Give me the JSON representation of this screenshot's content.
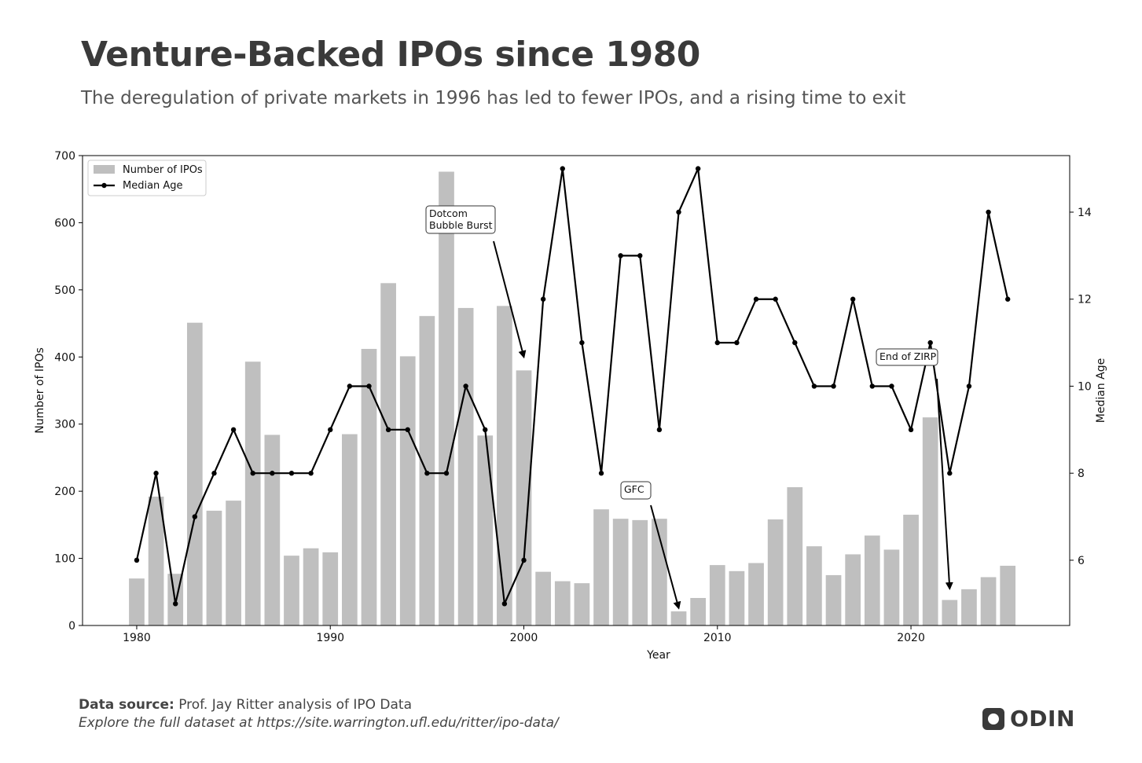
{
  "header": {
    "title": "Venture-Backed IPOs since 1980",
    "subtitle": "The deregulation of private markets in 1996 has led to fewer IPOs, and a rising time to exit"
  },
  "footer": {
    "source_label": "Data source:",
    "source_text": "Prof. Jay Ritter analysis of IPO Data",
    "explore_text": "Explore the full dataset at https://site.warrington.ufl.edu/ritter/ipo-data/",
    "logo_text": "ODIN"
  },
  "colors": {
    "bar": "#bfbfbf",
    "line": "#000000",
    "text": "#333333"
  },
  "chart_data": {
    "type": "bar",
    "title": "Venture-Backed IPOs since 1980",
    "xlabel": "Year",
    "ylabel": "Number of IPOs",
    "y2label": "Median Age",
    "xlim": [
      1977.2,
      2028.2
    ],
    "ylim": [
      0,
      700
    ],
    "y2lim": [
      4.5,
      15.3
    ],
    "x_ticks": [
      1980,
      1990,
      2000,
      2010,
      2020
    ],
    "y_ticks": [
      0,
      100,
      200,
      300,
      400,
      500,
      600,
      700
    ],
    "y2_ticks": [
      6,
      8,
      10,
      12,
      14
    ],
    "legend_position": "top-left",
    "years": [
      1980,
      1981,
      1982,
      1983,
      1984,
      1985,
      1986,
      1987,
      1988,
      1989,
      1990,
      1991,
      1992,
      1993,
      1994,
      1995,
      1996,
      1997,
      1998,
      1999,
      2000,
      2001,
      2002,
      2003,
      2004,
      2005,
      2006,
      2007,
      2008,
      2009,
      2010,
      2011,
      2012,
      2013,
      2014,
      2015,
      2016,
      2017,
      2018,
      2019,
      2020,
      2021,
      2022,
      2023,
      2024,
      2025
    ],
    "series": [
      {
        "name": "Number of IPOs",
        "type": "bar",
        "axis": "left",
        "values": [
          70,
          192,
          77,
          451,
          171,
          186,
          393,
          284,
          104,
          115,
          109,
          285,
          412,
          510,
          401,
          461,
          676,
          473,
          283,
          476,
          380,
          80,
          66,
          63,
          173,
          159,
          157,
          159,
          21,
          41,
          90,
          81,
          93,
          158,
          206,
          118,
          75,
          106,
          134,
          113,
          165,
          310,
          38,
          54,
          72,
          89
        ]
      },
      {
        "name": "Median Age",
        "type": "line",
        "axis": "right",
        "values": [
          6,
          8,
          5,
          7,
          8,
          9,
          8,
          8,
          8,
          8,
          9,
          10,
          10,
          9,
          9,
          8,
          8,
          10,
          9,
          5,
          6,
          12,
          15,
          11,
          8,
          13,
          13,
          9,
          14,
          15,
          11,
          11,
          12,
          12,
          11,
          10,
          10,
          12,
          10,
          10,
          9,
          11,
          8,
          10,
          14,
          12
        ]
      }
    ],
    "legend": [
      "Number of IPOs",
      "Median Age"
    ],
    "annotations": [
      {
        "text": [
          "Dotcom",
          "Bubble Burst"
        ],
        "target_year": 2000,
        "target_value": 400
      },
      {
        "text": [
          "GFC"
        ],
        "target_year": 2008,
        "target_value": 26
      },
      {
        "text": [
          "End of ZIRP"
        ],
        "target_year": 2022,
        "target_value": 55
      }
    ]
  }
}
